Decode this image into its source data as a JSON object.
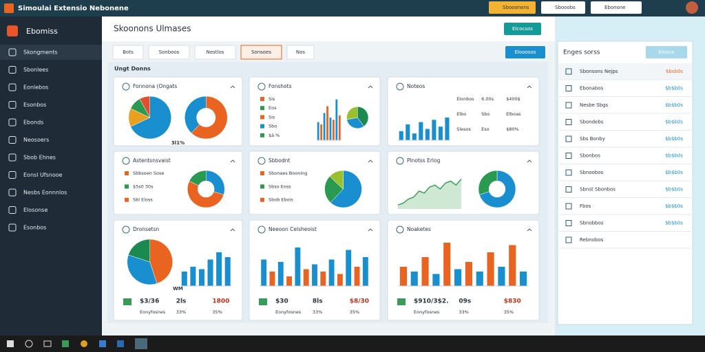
{
  "titlebar": {
    "title": "Simoulai Extensio Nebonene",
    "buttons": [
      "Sbooonons",
      "Sbooobs",
      "Ebonone"
    ]
  },
  "sidebar": {
    "brand": "Ebomiss",
    "items": [
      "Skongments",
      "Sbonlees",
      "Eonlebos",
      "Esonbos",
      "Ebonds",
      "Neosoers",
      "Sbob Ehnes",
      "Eonsl Ufsnooe",
      "Nesbs Eonnnlos",
      "Elosonse",
      "Esonbos"
    ]
  },
  "header": {
    "title": "Skoonons Ulmases",
    "button": "Elcocsos"
  },
  "tabs": [
    "Bots",
    "Sonboos",
    "Nestlos",
    "Sonsoes",
    "Nos"
  ],
  "tab_action": "Elooosos",
  "section": "Ungt Donns",
  "cards": [
    {
      "title": "Fonnona (Ongats",
      "note": "3l1%",
      "charts": [
        {
          "type": "pie",
          "values": [
            68,
            14,
            10,
            8
          ],
          "colors": [
            "#1a8fd0",
            "#e8a020",
            "#2a9a50",
            "#e05030"
          ]
        },
        {
          "type": "donut",
          "values": [
            62,
            38
          ],
          "colors": [
            "#e86420",
            "#1a8fd0"
          ]
        }
      ]
    },
    {
      "title": "Fonshots",
      "legend": [
        "Sis",
        "Eos",
        "Sis",
        "Sbo",
        "$ä %"
      ],
      "charts": [
        {
          "type": "bar",
          "values": [
            40,
            35,
            60,
            75,
            50,
            45,
            90,
            55
          ],
          "ylim": [
            0,
            100
          ],
          "colors": [
            "#1a8fd0",
            "#e86420"
          ]
        },
        {
          "type": "pie",
          "values": [
            40,
            32,
            28
          ],
          "colors": [
            "#1a8a50",
            "#1a8fd0",
            "#9ac030"
          ]
        }
      ]
    },
    {
      "title": "Noteos",
      "legend": [
        "Elonbos",
        "6.00s",
        "$400$",
        "Elbo",
        "Sbo",
        "Elboas",
        "Slesos",
        "Eso",
        "$80%"
      ],
      "charts": [
        {
          "type": "bar",
          "values": [
            20,
            35,
            15,
            40,
            25,
            45,
            30,
            50
          ],
          "ylim": [
            0,
            100
          ],
          "colors": [
            "#1a8fd0",
            "#1a8fd0"
          ]
        }
      ]
    },
    {
      "title": "Astentsnsvaist",
      "legend": [
        "Sbbsoen Sose",
        "$5s0 30s",
        "Sbl Eloss"
      ],
      "charts": [
        {
          "type": "donut",
          "values": [
            30,
            52,
            18
          ],
          "colors": [
            "#1a8fd0",
            "#e86420",
            "#2a9a50"
          ]
        }
      ]
    },
    {
      "title": "Sbbodnt",
      "legend": [
        "Sbonaes Booning",
        "Sbso Eoss",
        "Sbob Ebois"
      ],
      "charts": [
        {
          "type": "pie",
          "values": [
            62,
            25,
            13
          ],
          "colors": [
            "#1a8fd0",
            "#2a9a50",
            "#9ac030"
          ]
        }
      ]
    },
    {
      "title": "Plnotss Erlog",
      "charts": [
        {
          "type": "area",
          "values": [
            10,
            15,
            25,
            30,
            45,
            40,
            55,
            60,
            50,
            65,
            70,
            60,
            75
          ],
          "ylim": [
            0,
            100
          ],
          "colors": [
            "#3aa05a"
          ]
        },
        {
          "type": "donut",
          "values": [
            70,
            30
          ],
          "colors": [
            "#1a8fd0",
            "#2a9a50"
          ]
        }
      ]
    },
    {
      "title": "Dronsetsn",
      "note": "WM",
      "stats": [
        "$3/36",
        "2ls",
        "1800",
        "Eonyfosnes",
        "33%",
        "35%"
      ],
      "charts": [
        {
          "type": "pie",
          "values": [
            45,
            35,
            20
          ],
          "colors": [
            "#e86420",
            "#1a8fd0",
            "#1a8a50"
          ]
        },
        {
          "type": "bar",
          "values": [
            30,
            40,
            35,
            55,
            70,
            60
          ],
          "ylim": [
            0,
            100
          ],
          "colors": [
            "#1a8fd0"
          ]
        }
      ]
    },
    {
      "title": "Neeoon Celsheoist",
      "stats": [
        "$30",
        "8ls",
        "$8/30",
        "Eonyfosnes",
        "33%",
        "35%"
      ],
      "charts": [
        {
          "type": "bar",
          "values": [
            55,
            30,
            50,
            20,
            80,
            35,
            45,
            30,
            55,
            25,
            75,
            40,
            60
          ],
          "ylim": [
            0,
            100
          ],
          "colors": [
            "#1a8fd0",
            "#e86420"
          ]
        }
      ]
    },
    {
      "title": "Noaketes",
      "stats": [
        "$910/3$2.",
        "09s",
        "$830",
        "Eonyfosnes",
        "33%",
        "35%"
      ],
      "charts": [
        {
          "type": "bar",
          "values": [
            40,
            30,
            60,
            25,
            90,
            35,
            50,
            30,
            70,
            40,
            85,
            30
          ],
          "ylim": [
            0,
            100
          ],
          "colors": [
            "#e86420",
            "#1a8fd0"
          ]
        }
      ]
    }
  ],
  "panel": {
    "title": "Enges sorss",
    "button": "Elooos",
    "items": [
      {
        "label": "Sbonsons Nejps",
        "value": "$bsb0s"
      },
      {
        "label": "Ebonabos",
        "value": "$b$b0s"
      },
      {
        "label": "Nesbe Sbgs",
        "value": "$b$b0s"
      },
      {
        "label": "Sbondebs",
        "value": "$b$b0s"
      },
      {
        "label": "Sbs Bonby",
        "value": "$b$b0s"
      },
      {
        "label": "Sbonbos",
        "value": "$b$b0s"
      },
      {
        "label": "Sbnoobos",
        "value": "$b$b0s"
      },
      {
        "label": "Sbnst Sbonbos",
        "value": "$b$b0s"
      },
      {
        "label": "Fbos",
        "value": "$b$b0s"
      },
      {
        "label": "Sbnobbos",
        "value": "$b$b0s"
      },
      {
        "label": "Rebnobos",
        "value": ""
      }
    ]
  }
}
